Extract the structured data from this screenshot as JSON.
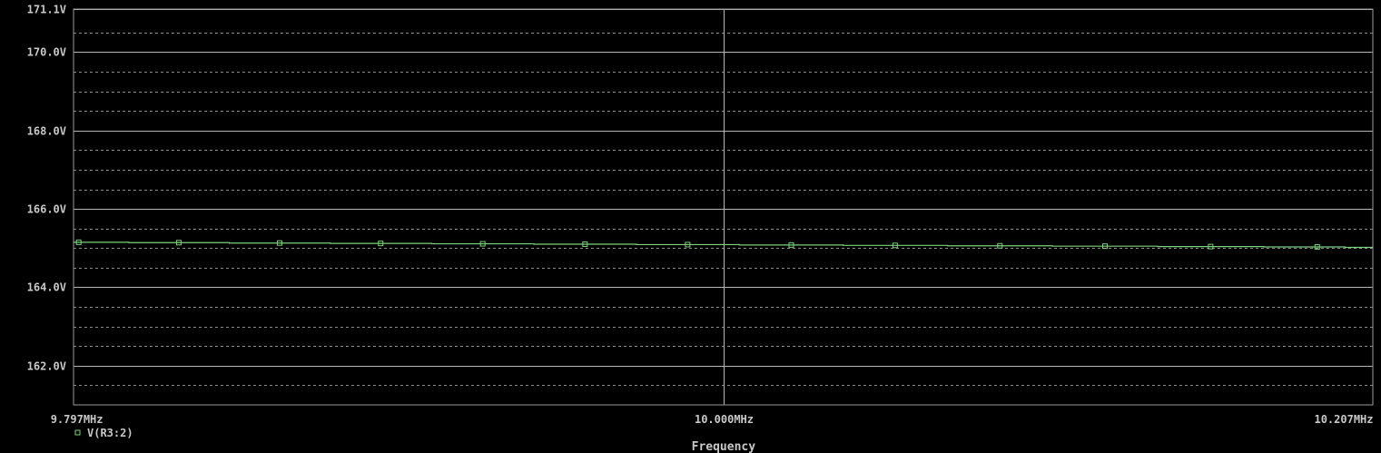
{
  "chart_data": {
    "type": "line",
    "xlabel": "Frequency",
    "ylabel": "",
    "xscale": "log",
    "xlim": [
      9.797,
      10.207
    ],
    "ylim": [
      161.0,
      171.1
    ],
    "x_unit": "MHz",
    "x_ticks": [
      {
        "value": 9.797,
        "label": "9.797MHz"
      },
      {
        "value": 10.0,
        "label": "10.000MHz"
      },
      {
        "value": 10.207,
        "label": "10.207MHz"
      }
    ],
    "y_ticks": [
      {
        "value": 171.1,
        "label": "171.1V"
      },
      {
        "value": 170.0,
        "label": "170.0V"
      },
      {
        "value": 168.0,
        "label": "168.0V"
      },
      {
        "value": 166.0,
        "label": "166.0V"
      },
      {
        "value": 164.0,
        "label": "164.0V"
      },
      {
        "value": 162.0,
        "label": "162.0V"
      }
    ],
    "y_dotted_grid": [
      170.5,
      169.5,
      169.0,
      168.5,
      167.5,
      167.0,
      166.5,
      165.5,
      165.0,
      164.5,
      163.5,
      163.0,
      162.5,
      161.5
    ],
    "grid": true,
    "legend": "bottom-left",
    "series": [
      {
        "name": "V(R3:2)",
        "color": "#7CCF7C",
        "marker": "square",
        "x": [
          9.7986,
          9.8296,
          9.8609,
          9.8924,
          9.9243,
          9.9564,
          9.9887,
          10.0214,
          10.0543,
          10.0876,
          10.1211,
          10.1549,
          10.1891,
          10.207
        ],
        "values": [
          165.15,
          165.14,
          165.13,
          165.12,
          165.11,
          165.1,
          165.09,
          165.08,
          165.07,
          165.06,
          165.05,
          165.04,
          165.03,
          165.02
        ]
      }
    ]
  }
}
